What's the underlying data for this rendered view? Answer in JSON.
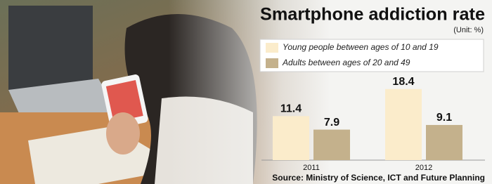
{
  "chart_data": {
    "type": "bar",
    "title": "Smartphone addiction rate",
    "unit_note": "(Unit: %)",
    "categories": [
      "2011",
      "2012"
    ],
    "series": [
      {
        "name": "Young people between ages of 10 and 19",
        "color": "#fbeccb",
        "values": [
          11.4,
          18.4
        ]
      },
      {
        "name": "Adults between ages of 20 and 49",
        "color": "#c4b18c",
        "values": [
          7.9,
          9.1
        ]
      }
    ],
    "ylim": [
      0,
      20
    ],
    "source": "Source: Ministry of Science, ICT and Future Planning"
  }
}
